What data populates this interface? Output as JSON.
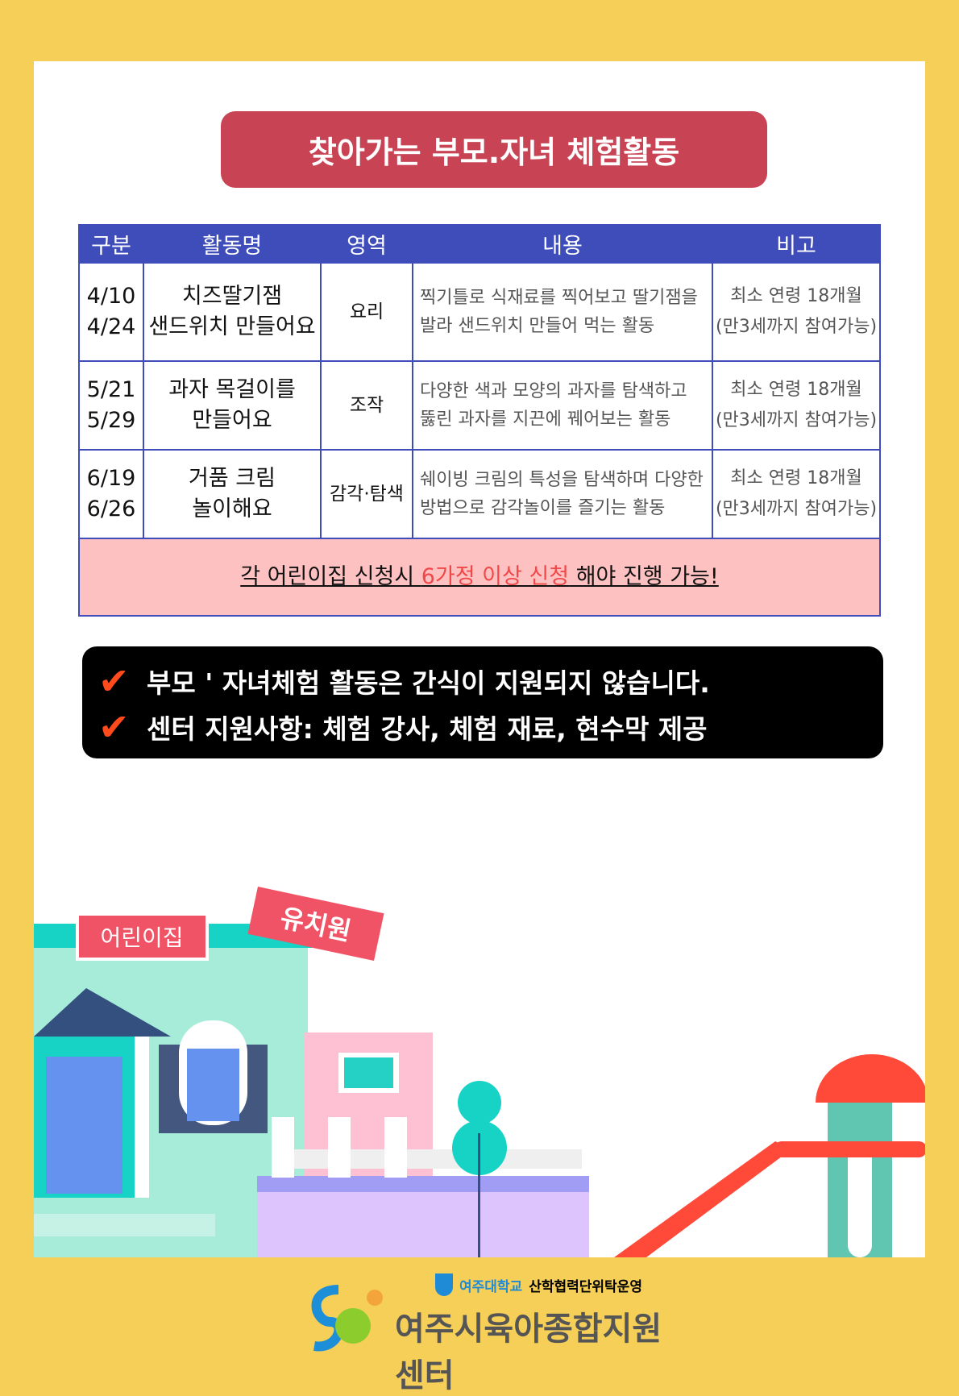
{
  "title": "찾아가는 부모.자녀 체험활동",
  "table": {
    "headers": [
      "구분",
      "활동명",
      "영역",
      "내용",
      "비고"
    ],
    "rows": [
      {
        "dates": [
          "4/10",
          "4/24"
        ],
        "name": [
          "치즈딸기잼",
          "샌드위치 만들어요"
        ],
        "area": "요리",
        "content": "찍기틀로 식재료를 찍어보고 딸기잼을 발라 샌드위치 만들어 먹는 활동",
        "note": [
          "최소 연령 18개월",
          "(만3세까지 참여가능)"
        ]
      },
      {
        "dates": [
          "5/21",
          "5/29"
        ],
        "name": [
          "과자 목걸이를",
          "만들어요"
        ],
        "area": "조작",
        "content": "다양한 색과 모양의 과자를 탐색하고 뚫린 과자를 지끈에 꿰어보는 활동",
        "note": [
          "최소 연령 18개월",
          "(만3세까지 참여가능)"
        ]
      },
      {
        "dates": [
          "6/19",
          "6/26"
        ],
        "name": [
          "거품 크림",
          "놀이해요"
        ],
        "area": "감각·탐색",
        "content": "쉐이빙 크림의 특성을 탐색하며 다양한 방법으로 감각놀이를 즐기는 활동",
        "note": [
          "최소 연령 18개월",
          "(만3세까지 참여가능)"
        ]
      }
    ],
    "footnote": {
      "a": "각 어린이집 신청시 ",
      "b": "6가정 이상 신청",
      "c": " 해야 진행 가능!"
    }
  },
  "notices": [
    "부모 ' 자녀체험 활동은 간식이 지원되지 않습니다.",
    "센터 지원사항: 체험 강사, 체험 재료, 현수막 제공"
  ],
  "signs": {
    "daycare": "어린이집",
    "kindergarten": "유치원"
  },
  "footer": {
    "university": "여주대학교",
    "operation": "산학협력단위탁운영",
    "center": "여주시육아종합지원센터"
  },
  "colors": {
    "background": "#f5cf58",
    "title": "#c84455",
    "table_header": "#3f4dbb",
    "note_bg": "#fdc1c1",
    "check": "#ff4a1c"
  }
}
